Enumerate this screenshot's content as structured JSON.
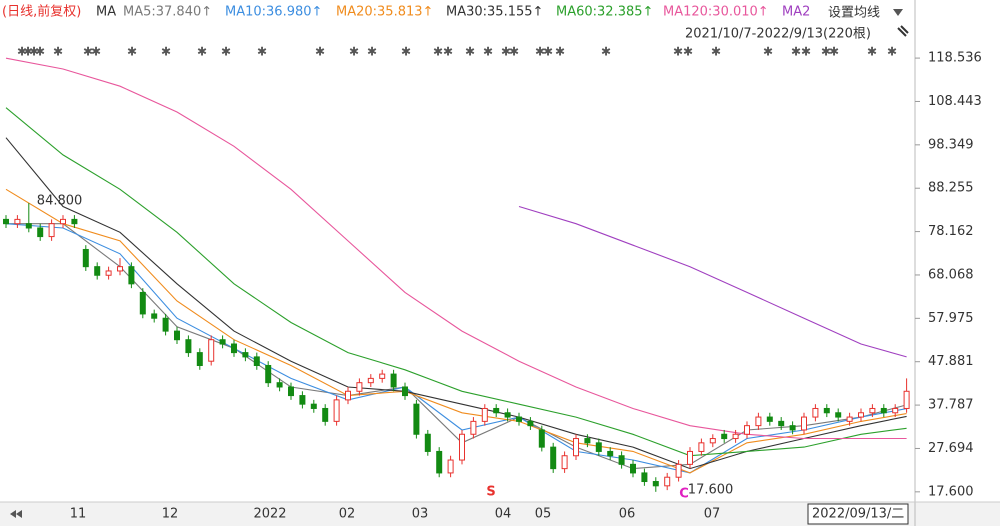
{
  "chart_data": {
    "type": "candlestick",
    "period_label": "(日线,前复权)",
    "ma_label": "MA",
    "settings_label": "设置均线",
    "range_label": "2021/10/7-2022/9/13(220根)",
    "high_label": "84.800",
    "low_label": "17.600",
    "markers": [
      "S",
      "C"
    ],
    "x_tick_labels": [
      "11",
      "12",
      "2022",
      "02",
      "03",
      "04",
      "05",
      "06",
      "07"
    ],
    "current_date": "2022/09/13/二",
    "up_color": "#e8322e",
    "down_color": "#138a13",
    "ylim": [
      15.7,
      127.4
    ],
    "yticks": [
      {
        "value": 17.6,
        "label": "17.600"
      },
      27.694,
      37.787,
      47.881,
      57.975,
      68.068,
      78.162,
      88.255,
      98.349,
      108.443,
      118.536
    ],
    "open": [
      81,
      80,
      80,
      79,
      77,
      80,
      81,
      74,
      70,
      68,
      69,
      70,
      64,
      59,
      58,
      55,
      53,
      50,
      48,
      53,
      52,
      50,
      49,
      47,
      43,
      42,
      40,
      38,
      37,
      34,
      39,
      41,
      43,
      44,
      45,
      42,
      38,
      31,
      27,
      22,
      25,
      31,
      34,
      37,
      36,
      35,
      34,
      32,
      28,
      23,
      26,
      30,
      29,
      27,
      26,
      24,
      22,
      20,
      19,
      21,
      24,
      27,
      29,
      31,
      30,
      31,
      33,
      35,
      34,
      33,
      32,
      35,
      37,
      36,
      34,
      35,
      36,
      37,
      36,
      37
    ],
    "high": [
      82,
      82,
      84.8,
      80,
      81,
      82,
      82,
      75,
      71,
      70,
      72,
      71,
      65,
      60,
      59,
      56,
      54,
      51,
      54,
      54,
      53,
      51,
      50,
      48,
      44,
      43,
      41,
      39,
      38,
      40,
      42,
      44,
      45,
      46,
      46,
      43,
      39,
      32,
      28,
      26,
      32,
      35,
      38,
      38,
      37,
      36,
      35,
      33,
      29,
      27,
      31,
      31,
      30,
      28,
      27,
      25,
      23,
      21,
      22,
      25,
      28,
      30,
      31,
      32,
      32,
      34,
      36,
      36,
      35,
      34,
      36,
      38,
      38,
      37,
      36,
      37,
      38,
      38,
      38,
      44
    ],
    "low": [
      79,
      79,
      78,
      76,
      76,
      79,
      79,
      69,
      67,
      67,
      68,
      65,
      58,
      57,
      54,
      52,
      49,
      46,
      47,
      51,
      49,
      48,
      46,
      42,
      41,
      39,
      37,
      36,
      33,
      33,
      38,
      40,
      42,
      43,
      41,
      39,
      30,
      26,
      21,
      21,
      24,
      30,
      33,
      35,
      34,
      33,
      32,
      27,
      22,
      22,
      25,
      28,
      26,
      25,
      23,
      21,
      19,
      17.6,
      18,
      20,
      23,
      26,
      28,
      29,
      29,
      30,
      32,
      33,
      32,
      31,
      31,
      34,
      35,
      34,
      33,
      34,
      35,
      35,
      35,
      36
    ],
    "close": [
      80,
      81,
      79,
      77,
      80,
      81,
      80,
      70,
      68,
      69,
      70,
      66,
      59,
      58,
      55,
      53,
      50,
      47,
      53,
      52,
      50,
      49,
      47,
      43,
      42,
      40,
      38,
      37,
      34,
      39,
      41,
      43,
      44,
      45,
      42,
      40,
      31,
      27,
      22,
      25,
      31,
      34,
      37,
      36,
      35,
      34,
      33,
      28,
      23,
      26,
      30,
      29,
      27,
      26,
      24,
      22,
      20,
      19,
      21,
      24,
      27,
      29,
      30,
      30,
      31,
      33,
      35,
      34,
      33,
      32,
      35,
      37,
      36,
      35,
      35,
      36,
      37,
      36,
      37,
      41
    ],
    "ma_index": [
      0,
      5,
      10,
      15,
      20,
      25,
      30,
      35,
      40,
      45,
      50,
      55,
      60,
      65,
      70,
      75,
      79
    ],
    "series": [
      {
        "name": "MA5:37.840↑",
        "color": "#7a7a7a",
        "values": [
          80,
          80,
          70,
          56,
          51,
          42,
          40,
          42,
          29,
          35,
          28,
          23,
          24,
          32,
          33,
          35,
          37.84
        ]
      },
      {
        "name": "MA10:36.980↑",
        "color": "#3d8ee0",
        "values": [
          80,
          79,
          73,
          58,
          51,
          44,
          39,
          42,
          32,
          35,
          27,
          25,
          22,
          30,
          32,
          35,
          36.98
        ]
      },
      {
        "name": "MA20:35.813↑",
        "color": "#f08c1e",
        "values": [
          88,
          80,
          76,
          62,
          53,
          47,
          40,
          41,
          36,
          34,
          29,
          27,
          22,
          29,
          31,
          34,
          35.813
        ]
      },
      {
        "name": "MA30:35.155↑",
        "color": "#333333",
        "values": [
          100,
          84,
          78,
          66,
          55,
          48,
          42,
          41,
          38,
          35,
          31,
          28,
          23,
          27,
          30,
          33,
          35.155
        ]
      },
      {
        "name": "MA60:32.385↑",
        "color": "#2ca02c",
        "values": [
          107,
          96,
          88,
          78,
          66,
          57,
          50,
          46,
          41,
          38,
          35,
          31,
          26,
          27,
          28,
          31,
          32.385
        ]
      },
      {
        "name": "MA120:30.010↑",
        "color": "#e8579c",
        "values": [
          118.5,
          116,
          112,
          106,
          98,
          88,
          76,
          64,
          55,
          48,
          42,
          37,
          33,
          31,
          30,
          30,
          30.01
        ]
      },
      {
        "name": "MA2",
        "color": "#a040c0",
        "values": [
          null,
          null,
          null,
          null,
          null,
          null,
          null,
          null,
          null,
          84,
          80,
          75,
          70,
          64,
          58,
          52,
          49
        ]
      }
    ]
  }
}
